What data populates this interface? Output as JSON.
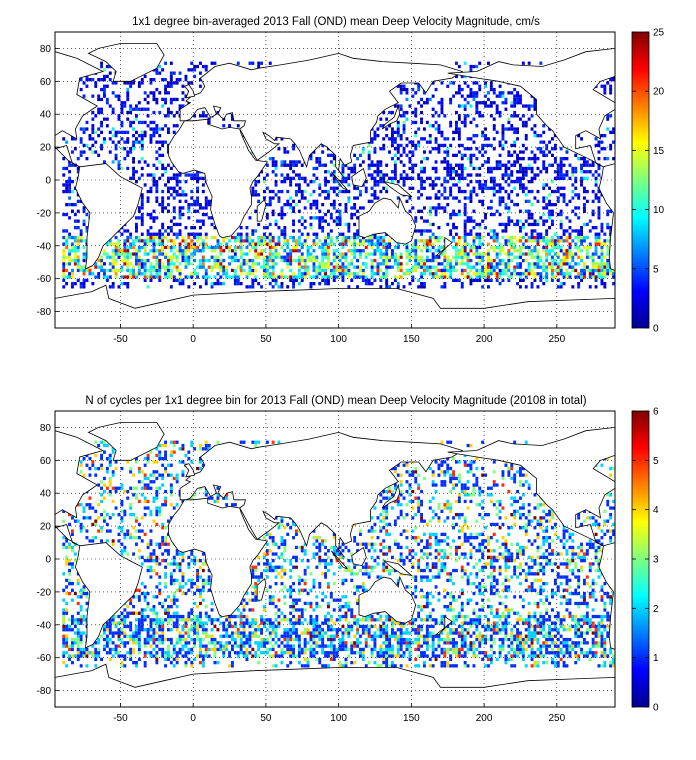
{
  "chart_data": [
    {
      "type": "heatmap",
      "title": "1x1 degree bin-averaged 2013 Fall (OND) mean Deep Velocity Magnitude, cm/s",
      "xlim": [
        -95,
        290
      ],
      "ylim": [
        -90,
        90
      ],
      "x_ticks": [
        -50,
        0,
        50,
        100,
        150,
        200,
        250
      ],
      "y_ticks": [
        80,
        60,
        40,
        20,
        0,
        -20,
        -40,
        -60,
        -80
      ],
      "grid": true,
      "colorbar": {
        "min": 0,
        "max": 25,
        "ticks": [
          0,
          5,
          10,
          15,
          20,
          25
        ],
        "colormap": "jet"
      },
      "basemap": "world coastlines",
      "description_values": "sparse 1x1 degree bins over ocean; mostly 0-5 cm/s with higher values (10-25) in Southern Ocean near -40 to -55 latitude"
    },
    {
      "type": "heatmap",
      "title": "N of cycles per 1x1 degree bin for 2013 Fall (OND) mean Deep Velocity Magnitude (20108 in total)",
      "xlim": [
        -95,
        290
      ],
      "ylim": [
        -90,
        90
      ],
      "x_ticks": [
        -50,
        0,
        50,
        100,
        150,
        200,
        250
      ],
      "y_ticks": [
        80,
        60,
        40,
        20,
        0,
        -20,
        -40,
        -60,
        -80
      ],
      "grid": true,
      "colorbar": {
        "min": 0,
        "max": 6,
        "ticks": [
          0,
          1,
          2,
          3,
          4,
          5,
          6
        ],
        "colormap": "jet"
      },
      "basemap": "world coastlines",
      "total_cycles": 20108
    }
  ]
}
